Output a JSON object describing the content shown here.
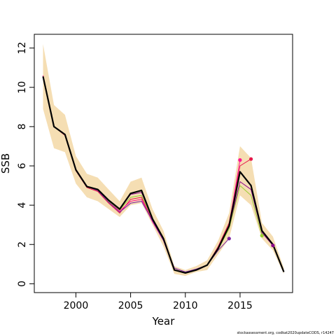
{
  "chart_data": {
    "type": "line",
    "title": "",
    "xlabel": "Year",
    "ylabel": "SSB",
    "xlim": [
      1996.2,
      2019.8
    ],
    "ylim": [
      -0.45,
      12.7
    ],
    "xticks": [
      2000,
      2005,
      2010,
      2015
    ],
    "yticks": [
      0,
      2,
      4,
      6,
      8,
      10,
      12
    ],
    "grid": false,
    "legend": "none",
    "colors": {
      "band": "#f5deb3",
      "main": "#000000",
      "retro": [
        "#e6194b",
        "#ff1493",
        "#7b1fa2",
        "#9acd32",
        "#8b008b",
        "#4b0082"
      ]
    },
    "confidence_band": {
      "x": [
        1997,
        1998,
        1999,
        2000,
        2001,
        2002,
        2003,
        2004,
        2005,
        2006,
        2007,
        2008,
        2009,
        2010,
        2011,
        2012,
        2013,
        2014,
        2015,
        2016,
        2017,
        2018,
        2019
      ],
      "upper": [
        12.2,
        9.1,
        8.6,
        6.5,
        5.6,
        5.4,
        4.8,
        4.2,
        5.2,
        5.4,
        3.8,
        2.7,
        0.9,
        0.7,
        0.9,
        1.2,
        2.2,
        3.6,
        7.0,
        6.4,
        3.1,
        2.4,
        0.8
      ],
      "lower": [
        8.9,
        6.9,
        6.7,
        5.1,
        4.4,
        4.2,
        3.8,
        3.4,
        4.0,
        4.1,
        3.0,
        1.9,
        0.5,
        0.4,
        0.6,
        0.7,
        1.5,
        2.3,
        4.5,
        4.0,
        2.3,
        1.7,
        0.5
      ]
    },
    "series": [
      {
        "x": [
          1997,
          1998,
          1999,
          2000,
          2001,
          2002,
          2003,
          2004,
          2005,
          2006,
          2007,
          2008,
          2009,
          2010,
          2011,
          2012,
          2013,
          2014,
          2015,
          2016,
          2017,
          2018,
          2019
        ],
        "values": [
          10.55,
          8.0,
          7.6,
          5.8,
          4.95,
          4.8,
          4.25,
          3.8,
          4.6,
          4.75,
          3.3,
          2.3,
          0.7,
          0.55,
          0.7,
          0.95,
          1.8,
          2.95,
          5.7,
          5.0,
          2.7,
          2.0,
          0.6
        ],
        "role": "main"
      },
      {
        "x": [
          1997,
          1998,
          1999,
          2000,
          2001,
          2002,
          2003,
          2004,
          2005,
          2006,
          2007,
          2008,
          2009,
          2010,
          2011,
          2012,
          2013,
          2014,
          2015,
          2016
        ],
        "values": [
          10.6,
          8.0,
          7.55,
          5.75,
          4.9,
          4.7,
          4.1,
          3.6,
          4.3,
          4.4,
          3.2,
          2.25,
          0.7,
          0.55,
          0.7,
          0.95,
          1.9,
          3.1,
          6.0,
          6.35
        ],
        "role": "peel",
        "endpoint": true
      },
      {
        "x": [
          1997,
          1998,
          1999,
          2000,
          2001,
          2002,
          2003,
          2004,
          2005,
          2006,
          2007,
          2008,
          2009,
          2010,
          2011,
          2012,
          2013,
          2014,
          2015
        ],
        "values": [
          10.6,
          8.0,
          7.6,
          5.8,
          4.95,
          4.75,
          4.2,
          3.7,
          4.2,
          4.3,
          3.15,
          2.2,
          0.7,
          0.55,
          0.7,
          0.95,
          1.85,
          3.0,
          6.3
        ],
        "role": "peel",
        "endpoint": true
      },
      {
        "x": [
          1997,
          1998,
          1999,
          2000,
          2001,
          2002,
          2003,
          2004,
          2005,
          2006,
          2007,
          2008,
          2009,
          2010,
          2011,
          2012,
          2013,
          2014
        ],
        "values": [
          10.55,
          8.0,
          7.6,
          5.8,
          4.95,
          4.75,
          4.15,
          3.65,
          4.1,
          4.2,
          3.2,
          2.2,
          0.8,
          0.6,
          0.75,
          0.95,
          1.7,
          2.3
        ],
        "role": "peel",
        "endpoint": true
      },
      {
        "x": [
          1997,
          1998,
          1999,
          2000,
          2001,
          2002,
          2003,
          2004,
          2005,
          2006,
          2007,
          2008,
          2009,
          2010,
          2011,
          2012,
          2013,
          2014,
          2015,
          2016,
          2017
        ],
        "values": [
          10.55,
          8.0,
          7.6,
          5.8,
          4.95,
          4.8,
          4.2,
          3.75,
          4.4,
          4.5,
          3.3,
          2.3,
          0.7,
          0.55,
          0.7,
          0.95,
          1.75,
          2.8,
          5.0,
          4.5,
          2.45
        ],
        "role": "peel",
        "endpoint": true
      },
      {
        "x": [
          1997,
          1998,
          1999,
          2000,
          2001,
          2002,
          2003,
          2004,
          2005,
          2006,
          2007,
          2008,
          2009,
          2010,
          2011,
          2012,
          2013,
          2014,
          2015,
          2016,
          2017,
          2018
        ],
        "values": [
          10.55,
          8.0,
          7.6,
          5.8,
          4.95,
          4.8,
          4.25,
          3.8,
          4.55,
          4.65,
          3.3,
          2.3,
          0.7,
          0.55,
          0.7,
          0.95,
          1.8,
          2.9,
          5.2,
          4.8,
          2.6,
          1.95
        ],
        "role": "peel",
        "endpoint": true
      }
    ],
    "footnote": "stockassessment.org, codkat2020updateCODS, r14247"
  }
}
